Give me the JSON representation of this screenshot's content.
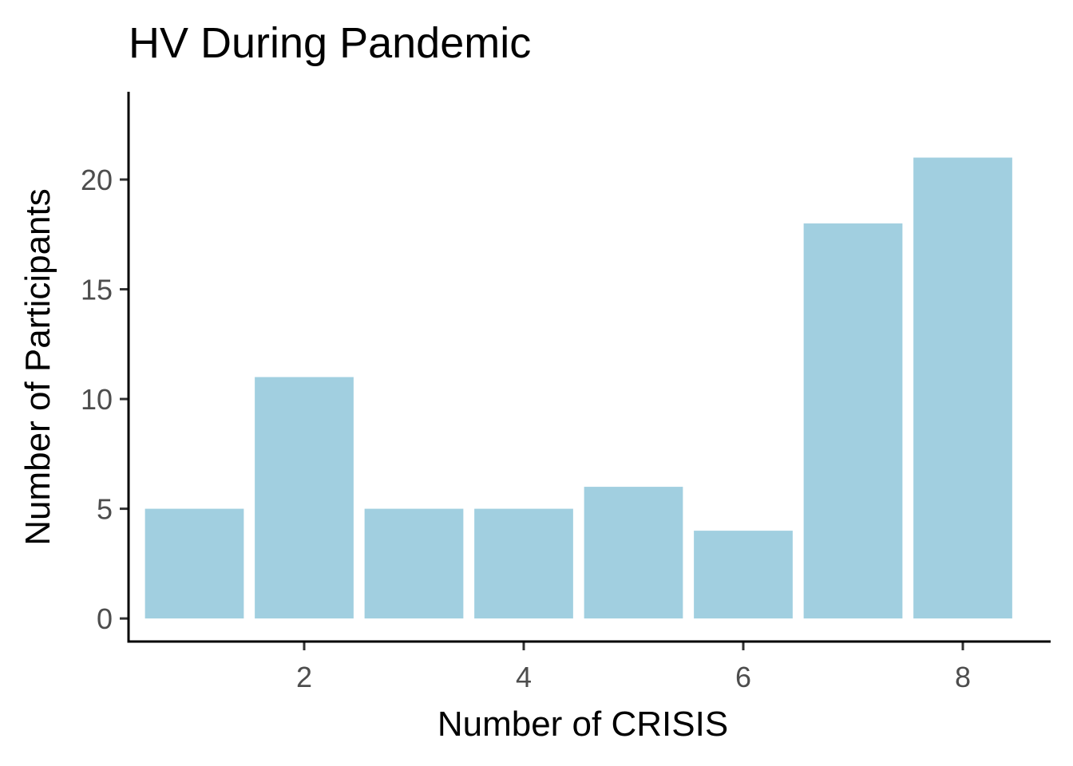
{
  "chart_data": {
    "type": "bar",
    "title": "HV During Pandemic",
    "xlabel": "Number of CRISIS",
    "ylabel": "Number of Participants",
    "x": [
      1,
      2,
      3,
      4,
      5,
      6,
      7,
      8
    ],
    "values": [
      5,
      11,
      5,
      5,
      6,
      4,
      18,
      21
    ],
    "xticks": [
      2,
      4,
      6,
      8
    ],
    "xtick_labels": [
      "2",
      "4",
      "6",
      "8"
    ],
    "yticks": [
      0,
      5,
      10,
      15,
      20
    ],
    "ytick_labels": [
      "0",
      "5",
      "10",
      "15",
      "20"
    ],
    "xlim": [
      0.4,
      8.8
    ],
    "ylim": [
      -1.05,
      24
    ],
    "bar_color": "#a1cfe0",
    "grid": false,
    "legend": "none"
  }
}
